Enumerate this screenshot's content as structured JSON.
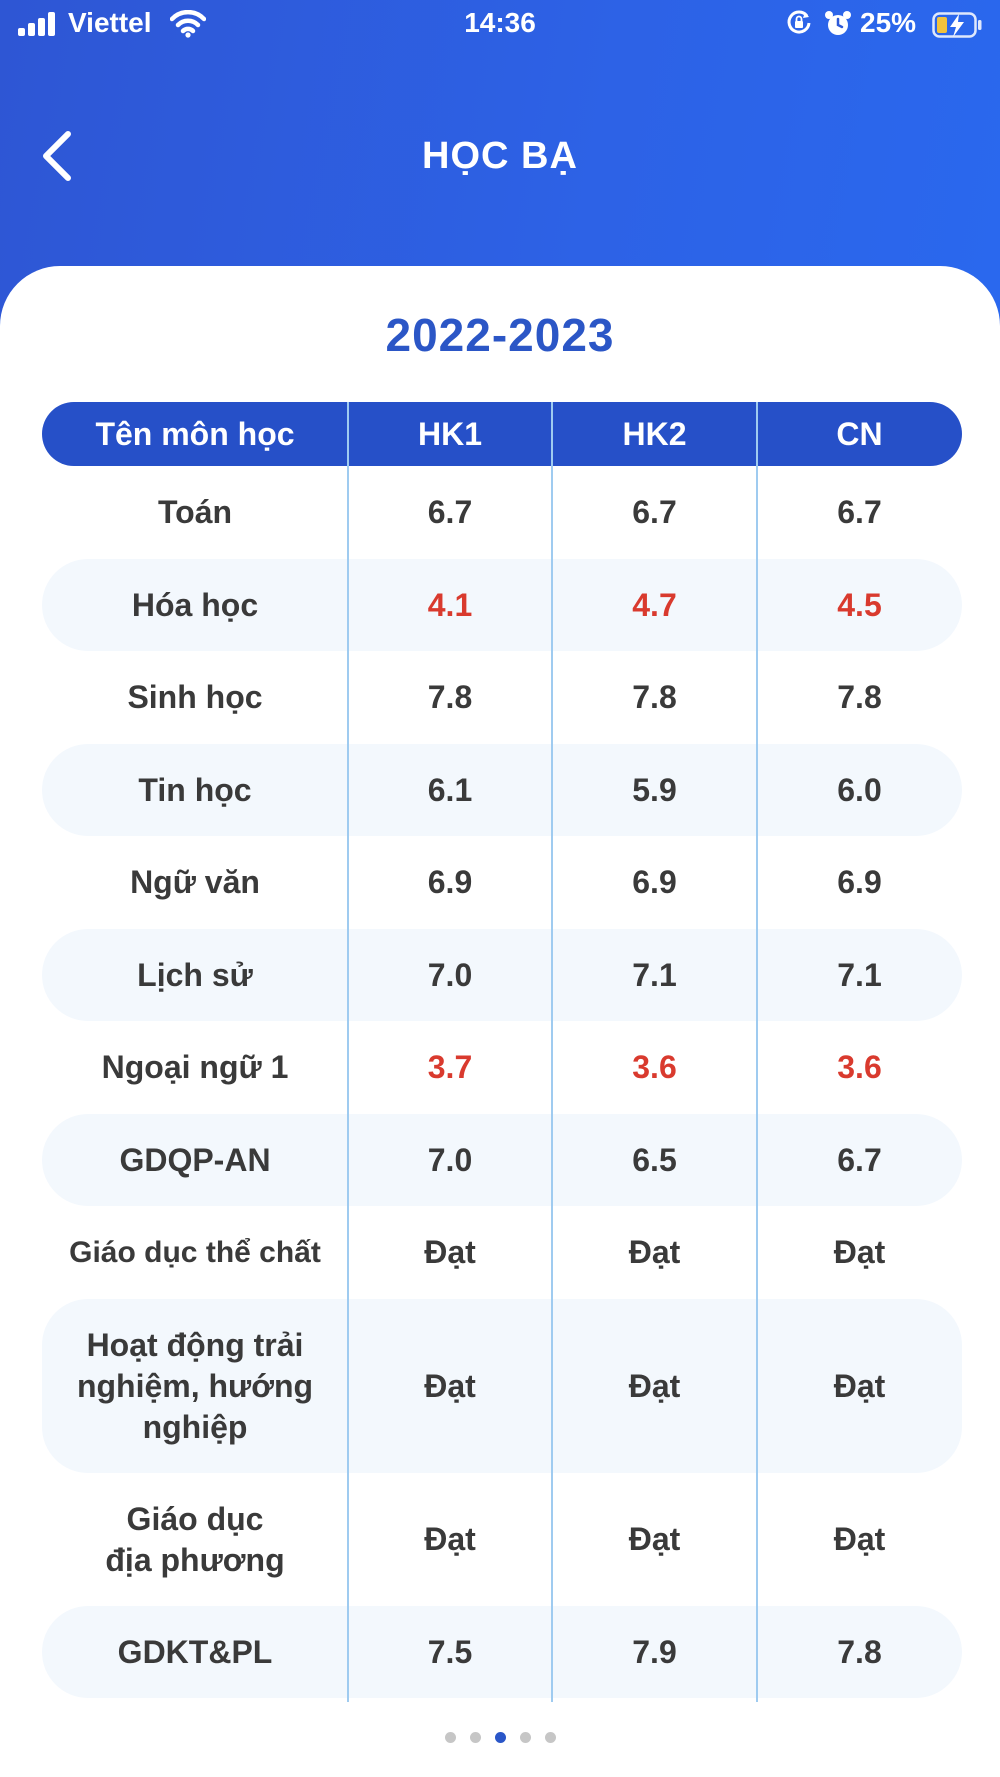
{
  "status": {
    "carrier": "Viettel",
    "time": "14:36",
    "battery": "25%"
  },
  "header": {
    "title": "HỌC BẠ"
  },
  "year": "2022-2023",
  "table": {
    "headers": [
      "Tên môn học",
      "HK1",
      "HK2",
      "CN"
    ],
    "rows": [
      {
        "subject": "Toán",
        "hk1": "6.7",
        "hk2": "6.7",
        "cn": "6.7"
      },
      {
        "subject": "Hóa học",
        "hk1": "4.1",
        "hk2": "4.7",
        "cn": "4.5"
      },
      {
        "subject": "Sinh học",
        "hk1": "7.8",
        "hk2": "7.8",
        "cn": "7.8"
      },
      {
        "subject": "Tin học",
        "hk1": "6.1",
        "hk2": "5.9",
        "cn": "6.0"
      },
      {
        "subject": "Ngữ văn",
        "hk1": "6.9",
        "hk2": "6.9",
        "cn": "6.9"
      },
      {
        "subject": "Lịch sử",
        "hk1": "7.0",
        "hk2": "7.1",
        "cn": "7.1"
      },
      {
        "subject": "Ngoại ngữ 1",
        "hk1": "3.7",
        "hk2": "3.6",
        "cn": "3.6"
      },
      {
        "subject": "GDQP-AN",
        "hk1": "7.0",
        "hk2": "6.5",
        "cn": "6.7"
      },
      {
        "subject": "Giáo dục thể chất",
        "hk1": "Đạt",
        "hk2": "Đạt",
        "cn": "Đạt"
      },
      {
        "subject": "Hoạt động trải nghiệm, hướng nghiệp",
        "hk1": "Đạt",
        "hk2": "Đạt",
        "cn": "Đạt"
      },
      {
        "subject": "Giáo dục địa phương",
        "hk1": "Đạt",
        "hk2": "Đạt",
        "cn": "Đạt"
      },
      {
        "subject": "GDKT&PL",
        "hk1": "7.5",
        "hk2": "7.9",
        "cn": "7.8"
      }
    ]
  },
  "colors": {
    "primary": "#2650c8",
    "low_score": "#d93a2e",
    "row_alt": "#f3f8fd",
    "divider": "#9fcbf0"
  },
  "pager": {
    "count": 5,
    "active_index": 2
  }
}
